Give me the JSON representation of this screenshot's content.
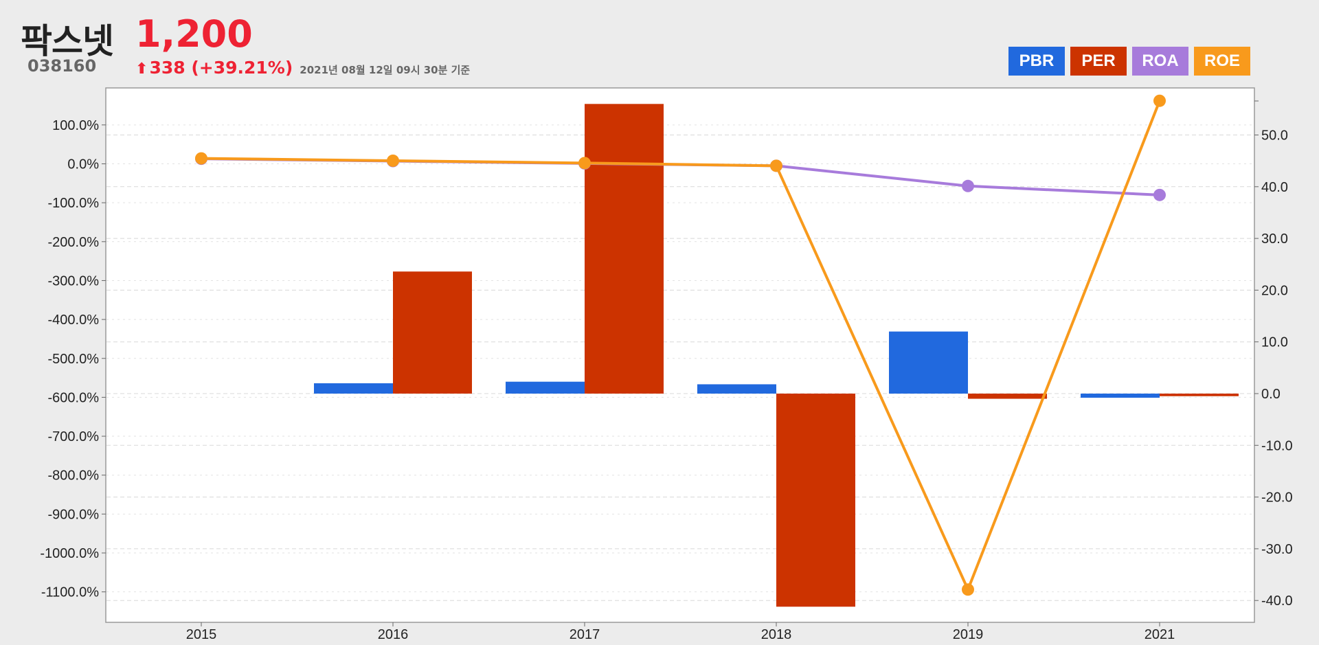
{
  "header": {
    "company_name": "팍스넷",
    "code": "038160",
    "price": "1,200",
    "change_arrow": "⬆",
    "change": "338 (+39.21%)",
    "as_of": "2021년 08월 12일 09시 30분 기준"
  },
  "legend": [
    {
      "label": "PBR",
      "color": "#2169de"
    },
    {
      "label": "PER",
      "color": "#cc3300"
    },
    {
      "label": "ROA",
      "color": "#a77bdb"
    },
    {
      "label": "ROE",
      "color": "#f89a1c"
    }
  ],
  "chart_data": {
    "type": "bar",
    "categories": [
      "2015",
      "2016",
      "2017",
      "2018",
      "2019",
      "2021"
    ],
    "y_left": {
      "ticks": [
        "100.0%",
        "0.0%",
        "-100.0%",
        "-200.0%",
        "-300.0%",
        "-400.0%",
        "-500.0%",
        "-600.0%",
        "-700.0%",
        "-800.0%",
        "-900.0%",
        "-1000.0%",
        "-1100.0%"
      ],
      "range": [
        -1145,
        200
      ]
    },
    "y_right": {
      "ticks": [
        "50.0",
        "40.0",
        "30.0",
        "20.0",
        "10.0",
        "0.0",
        "-10.0",
        "-20.0",
        "-30.0",
        "-40.0"
      ],
      "range": [
        -42,
        57
      ]
    },
    "series": [
      {
        "name": "PBR",
        "type": "bar",
        "axis": "right",
        "color": "#2169de",
        "values": [
          null,
          2.0,
          2.3,
          1.8,
          12.0,
          -0.8
        ]
      },
      {
        "name": "PER",
        "type": "bar",
        "axis": "right",
        "color": "#cc3300",
        "values": [
          null,
          23.6,
          56.0,
          -41.2,
          -1.0,
          -0.5
        ]
      },
      {
        "name": "ROA",
        "type": "line",
        "axis": "left",
        "color": "#a77bdb",
        "values": [
          13.0,
          7.0,
          1.0,
          -5.0,
          -57.0,
          -80.0
        ]
      },
      {
        "name": "ROE",
        "type": "line",
        "axis": "left",
        "color": "#f89a1c",
        "values": [
          14.0,
          8.0,
          2.0,
          -5.0,
          -1094.0,
          162.0
        ]
      }
    ],
    "grid": true
  }
}
